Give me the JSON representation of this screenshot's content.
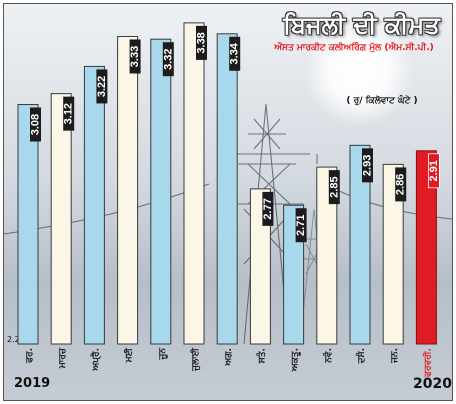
{
  "chart_data": {
    "type": "bar",
    "title": "ਬਿਜਲੀ ਦੀ ਕੀਮਤ",
    "subtitle": "ਔਸਤ ਮਾਰਕੀਟ ਕਲੀਅਰਿੰਗ ਮੁੱਲ (ਐਮ.ਸੀ.ਪੀ.)",
    "unit_label": "( ਰੁ/ ਕਿਲੋਵਾਟ ਘੰਟੇ )",
    "ylim": [
      2.2,
      3.42
    ],
    "baseline_label": "2.2",
    "categories": [
      "ਫਰ.",
      "ਮਾਰਚ",
      "ਅਪ੍ਰੈ.",
      "ਮਈ",
      "ਜੂਨ",
      "ਜੁਲਾਈ",
      "ਅਗ.",
      "ਸਤੰ.",
      "ਅਕਤੂ.",
      "ਨਵੰ.",
      "ਦਸੰ.",
      "ਜਨ.",
      "ਫਰਵਰੀ."
    ],
    "values": [
      3.08,
      3.12,
      3.22,
      3.33,
      3.32,
      3.38,
      3.34,
      2.77,
      2.71,
      2.85,
      2.93,
      2.86,
      2.91
    ],
    "value_labels": [
      "3.08",
      "3.12",
      "3.22",
      "3.33",
      "3.32",
      "3.38",
      "3.34",
      "2.77",
      "2.71",
      "2.85",
      "2.93",
      "2.86",
      "2.91"
    ],
    "year_labels": {
      "start": "2019",
      "end": "2020"
    },
    "colors": {
      "blue": "#a8d8ec",
      "cream": "#fbf6e6",
      "highlight": "#e11b22",
      "bar_outline": "#3a3a3a",
      "value_label_box": "#1c1c1c",
      "value_label_text": "#ffffff"
    },
    "bar_color_pattern": [
      "blue",
      "cream",
      "blue",
      "cream",
      "blue",
      "cream",
      "blue",
      "cream",
      "blue",
      "cream",
      "blue",
      "cream",
      "highlight"
    ],
    "grid": false,
    "legend": "none"
  }
}
